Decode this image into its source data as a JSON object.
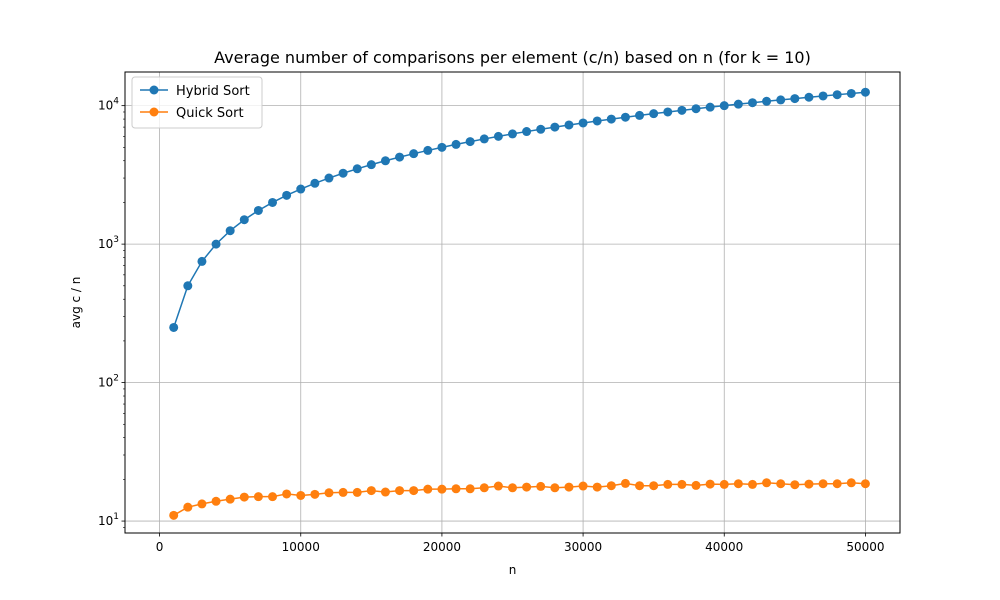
{
  "chart_data": {
    "type": "line",
    "title": "Average number of comparisons per element (c/n) based on n (for k = 10)",
    "xlabel": "n",
    "ylabel": "avg c / n",
    "xlim": [
      -2450,
      52450
    ],
    "ylim": [
      8.2,
      17500
    ],
    "yscale": "log",
    "grid": true,
    "legend_position": "top-left",
    "xticks": [
      0,
      10000,
      20000,
      30000,
      40000,
      50000
    ],
    "xtick_labels": [
      "0",
      "10000",
      "20000",
      "30000",
      "40000",
      "50000"
    ],
    "yticks": [
      10,
      100,
      1000,
      10000
    ],
    "ytick_labels": [
      {
        "base": "10",
        "exp": "1"
      },
      {
        "base": "10",
        "exp": "2"
      },
      {
        "base": "10",
        "exp": "3"
      },
      {
        "base": "10",
        "exp": "4"
      }
    ],
    "x": [
      1000,
      2000,
      3000,
      4000,
      5000,
      6000,
      7000,
      8000,
      9000,
      10000,
      11000,
      12000,
      13000,
      14000,
      15000,
      16000,
      17000,
      18000,
      19000,
      20000,
      21000,
      22000,
      23000,
      24000,
      25000,
      26000,
      27000,
      28000,
      29000,
      30000,
      31000,
      32000,
      33000,
      34000,
      35000,
      36000,
      37000,
      38000,
      39000,
      40000,
      41000,
      42000,
      43000,
      44000,
      45000,
      46000,
      47000,
      48000,
      49000,
      50000
    ],
    "series": [
      {
        "name": "Hybrid Sort",
        "color": "#1f77b4",
        "values": [
          250,
          500,
          750,
          1000,
          1250,
          1500,
          1750,
          2000,
          2250,
          2500,
          2750,
          3000,
          3250,
          3500,
          3750,
          4000,
          4250,
          4500,
          4750,
          5000,
          5250,
          5500,
          5750,
          6000,
          6250,
          6500,
          6750,
          7000,
          7250,
          7500,
          7750,
          8000,
          8250,
          8500,
          8750,
          9000,
          9250,
          9500,
          9750,
          10000,
          10250,
          10500,
          10750,
          11000,
          11250,
          11500,
          11750,
          12000,
          12250,
          12500
        ]
      },
      {
        "name": "Quick Sort",
        "color": "#ff7f0e",
        "values": [
          11.0,
          12.6,
          13.3,
          13.9,
          14.4,
          14.9,
          15.0,
          15.0,
          15.7,
          15.3,
          15.6,
          16.0,
          16.1,
          16.1,
          16.6,
          16.2,
          16.6,
          16.6,
          17.0,
          17.0,
          17.1,
          17.1,
          17.4,
          17.9,
          17.4,
          17.6,
          17.8,
          17.4,
          17.6,
          17.9,
          17.6,
          18.0,
          18.7,
          18.0,
          18.0,
          18.4,
          18.4,
          18.1,
          18.5,
          18.4,
          18.6,
          18.4,
          18.9,
          18.6,
          18.3,
          18.5,
          18.6,
          18.6,
          18.9,
          18.6
        ]
      }
    ]
  }
}
